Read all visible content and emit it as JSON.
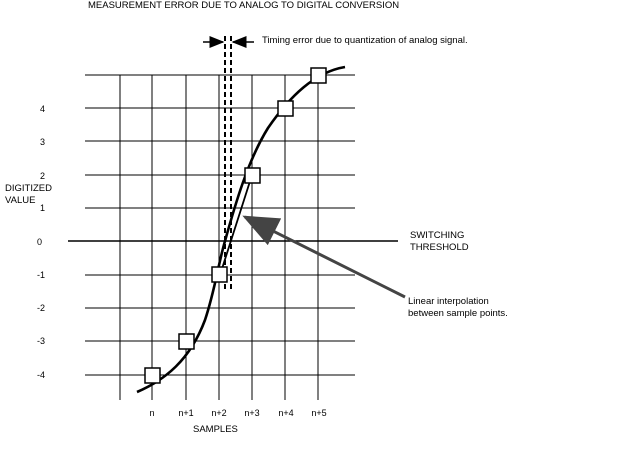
{
  "title": "MEASUREMENT ERROR DUE TO ANALOG TO DIGITAL CONVERSION",
  "timing_error_label": "Timing error due to quantization of analog signal.",
  "y_axis_label": [
    "DIGITIZED",
    "VALUE"
  ],
  "x_axis_label": "SAMPLES",
  "threshold_label": [
    "SWITCHING",
    "THRESHOLD"
  ],
  "interpolation_label": [
    "Linear interpolation",
    "between sample points."
  ],
  "y_ticks": [
    "4",
    "3",
    "2",
    "1",
    "0",
    "-1",
    "-2",
    "-3",
    "-4"
  ],
  "x_ticks": [
    "n",
    "n+1",
    "n+2",
    "n+3",
    "n+4",
    "n+5"
  ],
  "sample_points": [
    {
      "sample": "n",
      "value": -4
    },
    {
      "sample": "n+1",
      "value": -3
    },
    {
      "sample": "n+2",
      "value": -1
    },
    {
      "sample": "n+3",
      "value": 2
    },
    {
      "sample": "n+4",
      "value": 4
    },
    {
      "sample": "n+5",
      "value": 5
    }
  ]
}
